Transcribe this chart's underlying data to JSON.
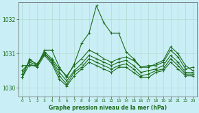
{
  "title": "Graphe pression niveau de la mer (hPa)",
  "background_color": "#caeef5",
  "line_color": "#1a6b1a",
  "grid_color": "#a8d8c8",
  "xlim": [
    -0.5,
    23.5
  ],
  "ylim": [
    1029.75,
    1032.5
  ],
  "yticks": [
    1030,
    1031,
    1032
  ],
  "xticks": [
    0,
    1,
    2,
    3,
    4,
    5,
    6,
    7,
    8,
    9,
    10,
    11,
    12,
    13,
    14,
    15,
    16,
    17,
    18,
    19,
    20,
    21,
    22,
    23
  ],
  "series": [
    [
      1030.3,
      1030.85,
      1030.65,
      1031.1,
      1031.1,
      1030.6,
      1030.3,
      1030.7,
      1031.3,
      1031.6,
      1032.4,
      1031.9,
      1031.6,
      1031.6,
      1031.05,
      1030.85,
      1030.6,
      1030.6,
      1030.7,
      1030.8,
      1031.2,
      1031.0,
      1030.65,
      1030.5
    ],
    [
      1030.65,
      1030.65,
      1030.65,
      1031.05,
      1030.85,
      1030.55,
      1030.35,
      1030.65,
      1030.85,
      1031.1,
      1031.0,
      1030.85,
      1030.75,
      1030.85,
      1030.9,
      1030.8,
      1030.6,
      1030.65,
      1030.65,
      1030.75,
      1031.1,
      1030.9,
      1030.55,
      1030.6
    ],
    [
      1030.5,
      1030.75,
      1030.65,
      1031.0,
      1030.8,
      1030.45,
      1030.2,
      1030.5,
      1030.7,
      1030.95,
      1030.85,
      1030.75,
      1030.65,
      1030.75,
      1030.8,
      1030.65,
      1030.45,
      1030.5,
      1030.55,
      1030.65,
      1030.95,
      1030.75,
      1030.45,
      1030.45
    ],
    [
      1030.4,
      1030.8,
      1030.7,
      1031.0,
      1030.75,
      1030.35,
      1030.1,
      1030.45,
      1030.6,
      1030.85,
      1030.75,
      1030.65,
      1030.55,
      1030.65,
      1030.7,
      1030.55,
      1030.35,
      1030.4,
      1030.5,
      1030.55,
      1030.85,
      1030.65,
      1030.4,
      1030.4
    ],
    [
      1030.3,
      1030.7,
      1030.6,
      1030.95,
      1030.7,
      1030.25,
      1030.05,
      1030.35,
      1030.55,
      1030.75,
      1030.65,
      1030.55,
      1030.45,
      1030.6,
      1030.6,
      1030.45,
      1030.3,
      1030.3,
      1030.45,
      1030.5,
      1030.75,
      1030.55,
      1030.35,
      1030.35
    ]
  ]
}
